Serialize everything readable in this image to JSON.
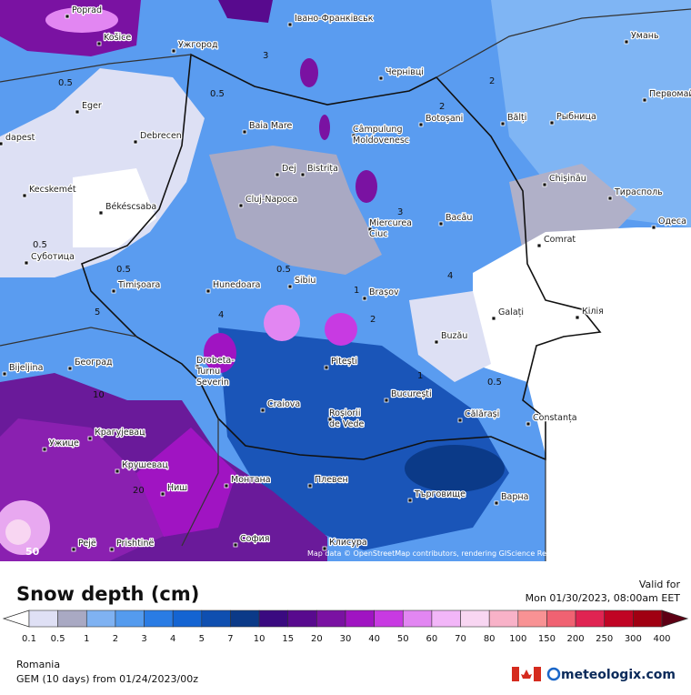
{
  "map": {
    "cities": [
      "Poprad",
      "Košice",
      "Ужгород",
      "Івано-Франківськ",
      "Чернівці",
      "Умань",
      "Первомайськ",
      "Рыбница",
      "Bălți",
      "Botoșani",
      [
        "Câmpulung",
        "Moldovenesc"
      ],
      "Baia Mare",
      "Eger",
      "dapest",
      "Debrecen",
      "Dej",
      "Bistrița",
      "Chișinău",
      "Тирасполь",
      "Kecskemét",
      "Cluj-Napoca",
      "Békéscsaba",
      "Bacău",
      [
        "Miercurea",
        "Ciuc"
      ],
      "Одеса",
      "Comrat",
      "Суботица",
      "Timișoara",
      "Hunedoara",
      "Sibiu",
      "Brașov",
      "Galați",
      "Кілія",
      "Buzău",
      "Београд",
      "Bijeljina",
      [
        "Drobeta-",
        "Turnu",
        "Severin"
      ],
      "Pitești",
      "București",
      "Craiova",
      [
        "Roșiorii",
        "de Vede"
      ],
      "Călărași",
      "Constanța",
      "Ужице",
      "Крагујевац",
      "Крушевац",
      "Монтана",
      "Плевен",
      "Търговище",
      "Варна",
      "Ниш",
      "София",
      "Pejë",
      "Prishtinë",
      "Клисура"
    ],
    "contour_labels": [
      0.5,
      0.5,
      0.5,
      0.5,
      0.5,
      0.5,
      2,
      2,
      3,
      3,
      1,
      4,
      5,
      10,
      1,
      2,
      4,
      20
    ],
    "corner_label": "50",
    "attribution": "Map data © OpenStreetMap contributors, rendering GIScience Research Group @ Heidelberg University"
  },
  "legend": {
    "title": "Snow depth (cm)",
    "valid_label": "Valid for",
    "valid_time": "Mon 01/30/2023, 08:00am EET",
    "ticks": [
      0.1,
      0.5,
      1,
      2,
      3,
      4,
      5,
      7,
      10,
      15,
      20,
      30,
      40,
      50,
      60,
      70,
      80,
      100,
      150,
      200,
      250,
      300,
      400
    ],
    "colors": [
      "#dfe0f5",
      "#a9a9c3",
      "#7fb2f2",
      "#549bee",
      "#2a7ce4",
      "#1464d2",
      "#0f4fb0",
      "#0b3a88",
      "#3a0a80",
      "#580a8e",
      "#7a12a2",
      "#a014c2",
      "#c83ae2",
      "#e286f2",
      "#f2b6f8",
      "#f8d6f2",
      "#f8b2c8",
      "#f89294",
      "#f06272",
      "#e02452",
      "#c00424",
      "#a00012"
    ],
    "over_color": "#5e0014"
  },
  "footer": {
    "region": "Romania",
    "model": "GEM (10 days) from 01/24/2023/00z",
    "brand": "meteologix.com"
  }
}
